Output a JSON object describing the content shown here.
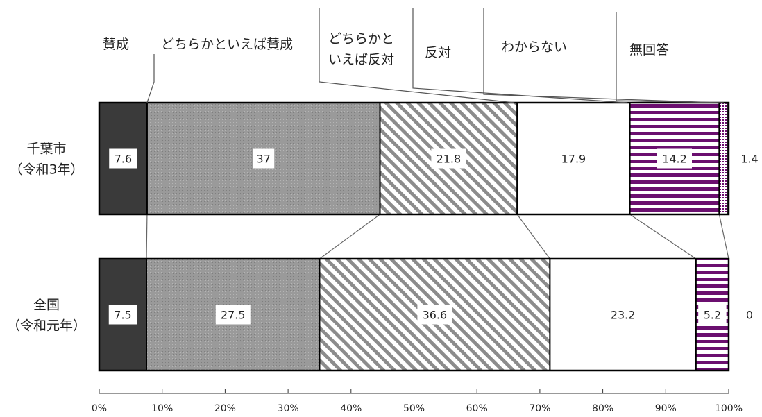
{
  "chart_data": {
    "type": "bar",
    "stacked": "100%",
    "orientation": "horizontal",
    "categories": [
      "千葉市\n（令和3年）",
      "全国\n（令和元年）"
    ],
    "series": [
      {
        "name": "賛成",
        "values": [
          7.6,
          7.5
        ],
        "fill": "#3a3a3a"
      },
      {
        "name": "どちらかといえば賛成",
        "values": [
          37,
          27.5
        ],
        "fill": "#9a9a9a"
      },
      {
        "name": "どちらかと\nいえば反対",
        "values": [
          21.8,
          36.6
        ],
        "fill": "hatch"
      },
      {
        "name": "反対",
        "values": [
          17.9,
          23.2
        ],
        "fill": "#ffffff"
      },
      {
        "name": "わからない",
        "values": [
          14.2,
          5.2
        ],
        "fill": "stripe"
      },
      {
        "name": "無回答",
        "values": [
          1.4,
          0
        ],
        "fill": "dots"
      }
    ],
    "xlim": [
      0,
      100
    ],
    "xticks": [
      "0%",
      "10%",
      "20%",
      "30%",
      "40%",
      "50%",
      "60%",
      "70%",
      "80%",
      "90%",
      "100%"
    ],
    "legend": "top",
    "grid": false,
    "colors": {
      "dark": "#3a3a3a",
      "gray": "#9a9a9a",
      "purple": "#6b0f6f",
      "hatch": "#8c8c8c"
    }
  }
}
